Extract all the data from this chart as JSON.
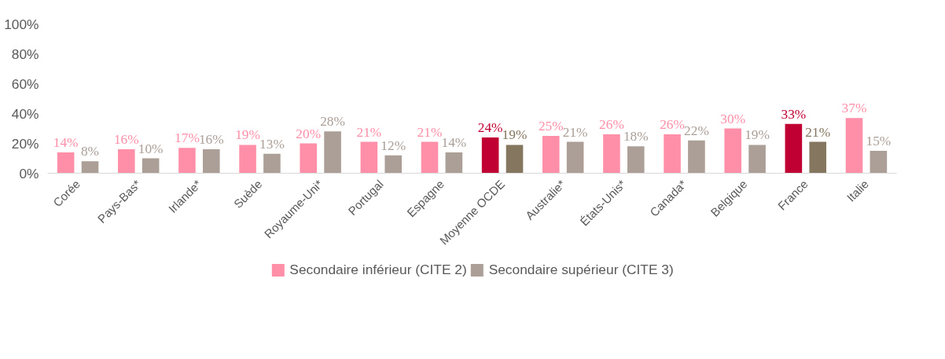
{
  "chart_data": {
    "type": "bar",
    "categories": [
      "Corée",
      "Pays-Bas*",
      "Irlande*",
      "Suède",
      "Royaume-Uni*",
      "Portugal",
      "Espagne",
      "Moyenne OCDE",
      "Australie*",
      "États-Unis*",
      "Canada*",
      "Belgique",
      "France",
      "Italie"
    ],
    "series": [
      {
        "name": "Secondaire inférieur (CITE 2)",
        "color": "#ff8fa8",
        "colors": [
          "#ff8fa8",
          "#ff8fa8",
          "#ff8fa8",
          "#ff8fa8",
          "#ff8fa8",
          "#ff8fa8",
          "#ff8fa8",
          "#c00033",
          "#ff8fa8",
          "#ff8fa8",
          "#ff8fa8",
          "#ff8fa8",
          "#c00033",
          "#ff8fa8"
        ],
        "values": [
          14,
          16,
          17,
          19,
          20,
          21,
          21,
          24,
          25,
          26,
          26,
          30,
          33,
          37
        ],
        "value_labels": [
          "14%",
          "16%",
          "17%",
          "19%",
          "20%",
          "21%",
          "21%",
          "24%",
          "25%",
          "26%",
          "26%",
          "30%",
          "33%",
          "37%"
        ]
      },
      {
        "name": "Secondaire supérieur (CITE 3)",
        "color": "#ab9f98",
        "colors": [
          "#ab9f98",
          "#ab9f98",
          "#ab9f98",
          "#ab9f98",
          "#ab9f98",
          "#ab9f98",
          "#ab9f98",
          "#84765f",
          "#ab9f98",
          "#ab9f98",
          "#ab9f98",
          "#ab9f98",
          "#84765f",
          "#ab9f98"
        ],
        "values": [
          8,
          10,
          16,
          13,
          28,
          12,
          14,
          19,
          21,
          18,
          22,
          19,
          21,
          15
        ],
        "value_labels": [
          "8%",
          "10%",
          "16%",
          "13%",
          "28%",
          "12%",
          "14%",
          "19%",
          "21%",
          "18%",
          "22%",
          "19%",
          "21%",
          "15%"
        ]
      }
    ],
    "ylim": [
      0,
      100
    ],
    "yticks": [
      {
        "value": 0,
        "label": "0%"
      },
      {
        "value": 20,
        "label": "20%"
      },
      {
        "value": 40,
        "label": "40%"
      },
      {
        "value": 60,
        "label": "60%"
      },
      {
        "value": 80,
        "label": "80%"
      },
      {
        "value": 100,
        "label": "100%"
      }
    ],
    "grid": false,
    "legend": "bottom"
  }
}
